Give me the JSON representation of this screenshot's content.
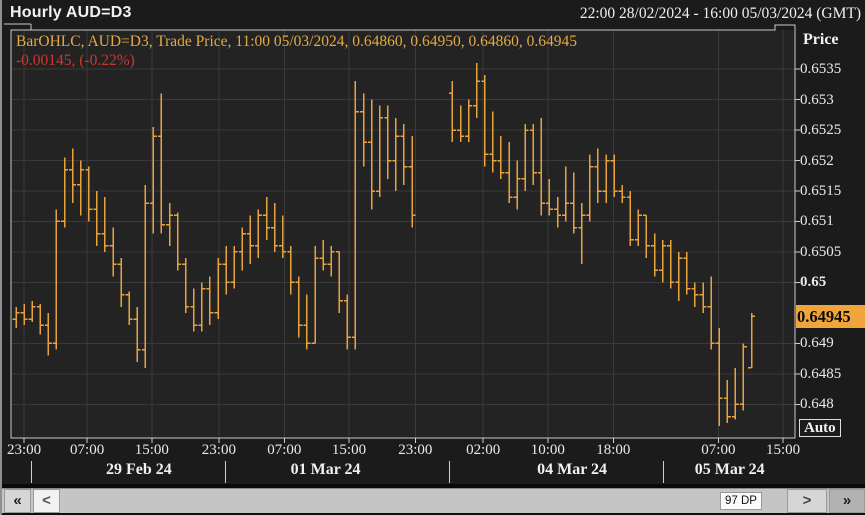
{
  "window": {
    "title": "Hourly AUD=D3",
    "time_range": "22:00 28/02/2024 - 16:00 05/03/2024 (GMT)"
  },
  "legend": {
    "line1": "BarOHLC, AUD=D3, Trade Price, 11:00 05/03/2024, 0.64860, 0.64950, 0.64860, 0.64945",
    "line2": "-0.00145, (-0.22%)",
    "line1_color": "#e4a945",
    "line2_color": "#d23430"
  },
  "y_axis": {
    "title": "Price",
    "auto_label": "Auto",
    "last_price_label": "0.64945",
    "last_price": 0.64945,
    "badge_color": "#efa53c",
    "ticks": [
      {
        "label": "0.6535",
        "value": 0.6535,
        "bold": false
      },
      {
        "label": "0.653",
        "value": 0.653,
        "bold": false
      },
      {
        "label": "0.6525",
        "value": 0.6525,
        "bold": false
      },
      {
        "label": "0.652",
        "value": 0.652,
        "bold": false
      },
      {
        "label": "0.6515",
        "value": 0.6515,
        "bold": false
      },
      {
        "label": "0.651",
        "value": 0.651,
        "bold": false
      },
      {
        "label": "0.6505",
        "value": 0.6505,
        "bold": false
      },
      {
        "label": "0.65",
        "value": 0.65,
        "bold": true
      },
      {
        "label": "0.649",
        "value": 0.649,
        "bold": false
      },
      {
        "label": "0.6485",
        "value": 0.6485,
        "bold": false
      },
      {
        "label": "0.648",
        "value": 0.648,
        "bold": false
      }
    ]
  },
  "x_axis": {
    "time_ticks": [
      {
        "label": "23:00",
        "slot": 1.0
      },
      {
        "label": "07:00",
        "slot": 8.8
      },
      {
        "label": "15:00",
        "slot": 16.8
      },
      {
        "label": "23:00",
        "slot": 25.1
      },
      {
        "label": "07:00",
        "slot": 33.2
      },
      {
        "label": "15:00",
        "slot": 41.2
      },
      {
        "label": "23:00",
        "slot": 49.4
      },
      {
        "label": "02:00",
        "slot": 57.8
      },
      {
        "label": "10:00",
        "slot": 65.8
      },
      {
        "label": "18:00",
        "slot": 73.9
      },
      {
        "label": "07:00",
        "slot": 86.9
      },
      {
        "label": "15:00",
        "slot": 94.9
      }
    ],
    "date_labels": [
      {
        "label": "29 Feb 24",
        "slot": 15.2
      },
      {
        "label": "01 Mar 24",
        "slot": 38.3
      },
      {
        "label": "04 Mar 24",
        "slot": 68.8
      },
      {
        "label": "05 Mar 24",
        "slot": 88.3
      }
    ],
    "date_separators": [
      1.85,
      25.9,
      53.6,
      80.05
    ]
  },
  "scrollbar": {
    "page_back": "«",
    "step_back": "<",
    "dp_label": "97 DP",
    "step_fwd": ">",
    "page_fwd": "»"
  },
  "chart_data": {
    "type": "ohlc-bar",
    "title": "Hourly AUD=D3",
    "instrument": "AUD=D3",
    "interval": "hourly",
    "period": "22:00 28/02/2024 - 16:00 05/03/2024 GMT",
    "n_slots": 97,
    "bar_color": "#e8a33c",
    "grid_color": "#3a3a3a",
    "frame_color": "#c9c9c9",
    "plot_bg": "#232323",
    "ylim": [
      0.64745,
      0.65414
    ],
    "last_bar": {
      "time": "11:00 05/03/2024",
      "open": 0.6486,
      "high": 0.6495,
      "low": 0.6486,
      "close": 0.64945
    },
    "change": -0.00145,
    "change_pct": -0.22,
    "bars_format": [
      "slot",
      "open",
      "high",
      "low",
      "close"
    ],
    "bars": [
      [
        0,
        0.6494,
        0.6496,
        0.64925,
        0.6495
      ],
      [
        1,
        0.6495,
        0.64965,
        0.6493,
        0.6494
      ],
      [
        2,
        0.6494,
        0.6497,
        0.64935,
        0.6496
      ],
      [
        3,
        0.6496,
        0.64965,
        0.64915,
        0.6493
      ],
      [
        4,
        0.6493,
        0.6495,
        0.6488,
        0.649
      ],
      [
        5,
        0.649,
        0.6512,
        0.6489,
        0.651
      ],
      [
        6,
        0.651,
        0.65205,
        0.6509,
        0.65185
      ],
      [
        7,
        0.65185,
        0.6522,
        0.6513,
        0.6516
      ],
      [
        8,
        0.6516,
        0.652,
        0.6511,
        0.65185
      ],
      [
        9,
        0.65185,
        0.6519,
        0.651,
        0.6512
      ],
      [
        10,
        0.6512,
        0.6515,
        0.6506,
        0.6508
      ],
      [
        11,
        0.6508,
        0.6514,
        0.6505,
        0.6506
      ],
      [
        12,
        0.6506,
        0.6509,
        0.6501,
        0.6503
      ],
      [
        13,
        0.6503,
        0.6504,
        0.6496,
        0.6498
      ],
      [
        14,
        0.6498,
        0.64985,
        0.6493,
        0.6494
      ],
      [
        15,
        0.6494,
        0.6496,
        0.6487,
        0.6489
      ],
      [
        16,
        0.6489,
        0.6516,
        0.6486,
        0.6513
      ],
      [
        17,
        0.6513,
        0.65255,
        0.6508,
        0.6524
      ],
      [
        18,
        0.6524,
        0.6531,
        0.6508,
        0.65095
      ],
      [
        19,
        0.65095,
        0.6513,
        0.6506,
        0.6511
      ],
      [
        20,
        0.6511,
        0.65115,
        0.6502,
        0.6503
      ],
      [
        21,
        0.6503,
        0.6504,
        0.6495,
        0.6496
      ],
      [
        22,
        0.6496,
        0.6499,
        0.6492,
        0.6493
      ],
      [
        23,
        0.6493,
        0.65,
        0.6492,
        0.6499
      ],
      [
        24,
        0.6499,
        0.6501,
        0.6493,
        0.6495
      ],
      [
        25,
        0.6495,
        0.6504,
        0.6494,
        0.6503
      ],
      [
        26,
        0.6503,
        0.6506,
        0.6498,
        0.65
      ],
      [
        27,
        0.65,
        0.6506,
        0.6499,
        0.6505
      ],
      [
        28,
        0.6505,
        0.6509,
        0.6502,
        0.6508
      ],
      [
        29,
        0.6508,
        0.6511,
        0.6503,
        0.6506
      ],
      [
        30,
        0.6506,
        0.6512,
        0.6504,
        0.6511
      ],
      [
        31,
        0.6511,
        0.6514,
        0.6507,
        0.6509
      ],
      [
        32,
        0.6509,
        0.6513,
        0.6505,
        0.6506
      ],
      [
        33,
        0.6506,
        0.6511,
        0.6504,
        0.6505
      ],
      [
        34,
        0.6505,
        0.6506,
        0.6498,
        0.65
      ],
      [
        35,
        0.65,
        0.6501,
        0.6491,
        0.6493
      ],
      [
        36,
        0.6493,
        0.6498,
        0.6489,
        0.649
      ],
      [
        37,
        0.649,
        0.6506,
        0.649,
        0.6504
      ],
      [
        38,
        0.6504,
        0.6507,
        0.6502,
        0.6503
      ],
      [
        39,
        0.6503,
        0.6506,
        0.6501,
        0.6505
      ],
      [
        40,
        0.6505,
        0.6505,
        0.6495,
        0.6497
      ],
      [
        41,
        0.6497,
        0.6498,
        0.6489,
        0.6491
      ],
      [
        42,
        0.6491,
        0.6533,
        0.6489,
        0.6528
      ],
      [
        43,
        0.6528,
        0.6531,
        0.6519,
        0.6523
      ],
      [
        44,
        0.6523,
        0.653,
        0.6512,
        0.6515
      ],
      [
        45,
        0.6515,
        0.6529,
        0.6514,
        0.6527
      ],
      [
        46,
        0.6527,
        0.6529,
        0.6517,
        0.652
      ],
      [
        47,
        0.652,
        0.6527,
        0.6515,
        0.6524
      ],
      [
        48,
        0.6524,
        0.6526,
        0.6516,
        0.6519
      ],
      [
        49,
        0.6519,
        0.6524,
        0.6509,
        0.6511
      ],
      [
        54,
        0.6531,
        0.6533,
        0.6523,
        0.6525
      ],
      [
        55,
        0.6525,
        0.6529,
        0.6523,
        0.6524
      ],
      [
        56,
        0.6524,
        0.653,
        0.6523,
        0.6529
      ],
      [
        57,
        0.6529,
        0.6536,
        0.6527,
        0.6533
      ],
      [
        58,
        0.6533,
        0.6534,
        0.6519,
        0.6521
      ],
      [
        59,
        0.6521,
        0.6528,
        0.6518,
        0.652
      ],
      [
        60,
        0.652,
        0.6524,
        0.6517,
        0.6518
      ],
      [
        61,
        0.6518,
        0.6523,
        0.6513,
        0.6514
      ],
      [
        62,
        0.6514,
        0.652,
        0.6512,
        0.6517
      ],
      [
        63,
        0.6517,
        0.6526,
        0.6515,
        0.6525
      ],
      [
        64,
        0.6525,
        0.6526,
        0.6516,
        0.6518
      ],
      [
        65,
        0.6518,
        0.6527,
        0.6511,
        0.6513
      ],
      [
        66,
        0.6513,
        0.6517,
        0.6511,
        0.6512
      ],
      [
        67,
        0.6512,
        0.6514,
        0.6509,
        0.6511
      ],
      [
        68,
        0.6511,
        0.6519,
        0.651,
        0.6513
      ],
      [
        69,
        0.6513,
        0.6518,
        0.6508,
        0.6509
      ],
      [
        70,
        0.6509,
        0.6513,
        0.6503,
        0.6511
      ],
      [
        71,
        0.6511,
        0.6521,
        0.651,
        0.6519
      ],
      [
        72,
        0.6519,
        0.6522,
        0.6513,
        0.6515
      ],
      [
        73,
        0.6515,
        0.6521,
        0.6513,
        0.652
      ],
      [
        74,
        0.652,
        0.6521,
        0.6514,
        0.6515
      ],
      [
        75,
        0.6515,
        0.6516,
        0.6513,
        0.6514
      ],
      [
        76,
        0.6514,
        0.6515,
        0.6506,
        0.6507
      ],
      [
        77,
        0.6507,
        0.6512,
        0.6506,
        0.6511
      ],
      [
        78,
        0.6511,
        0.6511,
        0.6504,
        0.6506
      ],
      [
        79,
        0.6506,
        0.6508,
        0.6501,
        0.6502
      ],
      [
        80,
        0.6502,
        0.6507,
        0.65,
        0.6506
      ],
      [
        81,
        0.6506,
        0.6507,
        0.6499,
        0.65
      ],
      [
        82,
        0.65,
        0.6505,
        0.6497,
        0.6504
      ],
      [
        83,
        0.6504,
        0.6505,
        0.6498,
        0.6499
      ],
      [
        84,
        0.6499,
        0.65,
        0.6496,
        0.6498
      ],
      [
        85,
        0.6498,
        0.65,
        0.6495,
        0.6496
      ],
      [
        86,
        0.6496,
        0.6501,
        0.6489,
        0.649
      ],
      [
        87,
        0.649,
        0.64925,
        0.64765,
        0.6481
      ],
      [
        88,
        0.6481,
        0.6484,
        0.6477,
        0.6478
      ],
      [
        89,
        0.6478,
        0.6486,
        0.64775,
        0.648
      ],
      [
        90,
        0.648,
        0.649,
        0.6479,
        0.64895
      ],
      [
        91,
        0.6486,
        0.6495,
        0.6486,
        0.64945
      ]
    ]
  }
}
